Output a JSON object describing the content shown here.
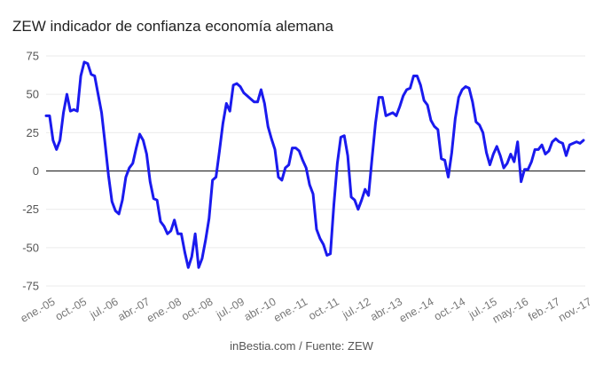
{
  "chart_data": {
    "type": "line",
    "title": "ZEW indicador de confianza economía alemana",
    "source": "inBestia.com / Fuente: ZEW",
    "xlabel": "",
    "ylabel": "",
    "ylim": [
      -75,
      75
    ],
    "yticks": [
      -75,
      -50,
      -25,
      0,
      25,
      50,
      75
    ],
    "grid": true,
    "legend": "none",
    "line_color": "#1a1aee",
    "x_tick_labels": [
      "ene.-05",
      "oct.-05",
      "jul.-06",
      "abr.-07",
      "ene.-08",
      "oct.-08",
      "jul.-09",
      "abr.-10",
      "ene.-11",
      "oct.-11",
      "jul.-12",
      "abr.-13",
      "ene.-14",
      "oct.-14",
      "jul.-15",
      "may.-16",
      "feb.-17",
      "nov.-17"
    ],
    "series": [
      {
        "values": [
          36,
          36,
          20,
          14,
          20,
          38,
          50,
          39,
          40,
          39,
          62,
          71,
          70,
          63,
          62,
          50,
          38,
          18,
          -3,
          -20,
          -26,
          -28,
          -19,
          -4,
          2,
          5,
          15,
          24,
          20,
          11,
          -7,
          -18,
          -19,
          -33,
          -36,
          -41,
          -39,
          -32,
          -41,
          -41,
          -53,
          -63,
          -56,
          -41,
          -63,
          -57,
          -45,
          -31,
          -6,
          -4,
          13,
          31,
          44,
          39,
          56,
          57,
          55,
          51,
          49,
          47,
          45,
          45,
          53,
          44,
          29,
          21,
          14,
          -4,
          -6,
          2,
          4,
          15,
          15,
          13,
          7,
          2,
          -9,
          -15,
          -38,
          -44,
          -48,
          -55,
          -54,
          -22,
          5,
          22,
          23,
          10,
          -17,
          -19,
          -25,
          -19,
          -12,
          -16,
          8,
          31,
          48,
          48,
          36,
          37,
          38,
          36,
          42,
          49,
          53,
          54,
          62,
          62,
          56,
          46,
          43,
          33,
          29,
          27,
          8,
          7,
          -4,
          12,
          34,
          48,
          53,
          55,
          54,
          45,
          32,
          30,
          25,
          12,
          4,
          11,
          16,
          10,
          2,
          5,
          11,
          6,
          19,
          -7,
          1,
          1,
          6,
          14,
          14,
          17,
          11,
          13,
          19,
          21,
          19,
          18,
          10,
          17,
          18,
          19,
          18,
          20
        ]
      }
    ]
  }
}
